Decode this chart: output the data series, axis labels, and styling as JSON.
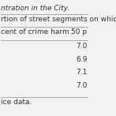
{
  "title_line": "ntration in the City.",
  "header_row": "rtion of street segments on which c",
  "col1_header": "cent of crime harm",
  "col2_header": "50 p",
  "values": [
    "7.0",
    "6.9",
    "7.1",
    "7.0"
  ],
  "footer": "ice data.",
  "bg_color": "#f2f2f2",
  "text_color": "#333333",
  "line_color": "#aaaaaa",
  "font_size": 6.5
}
